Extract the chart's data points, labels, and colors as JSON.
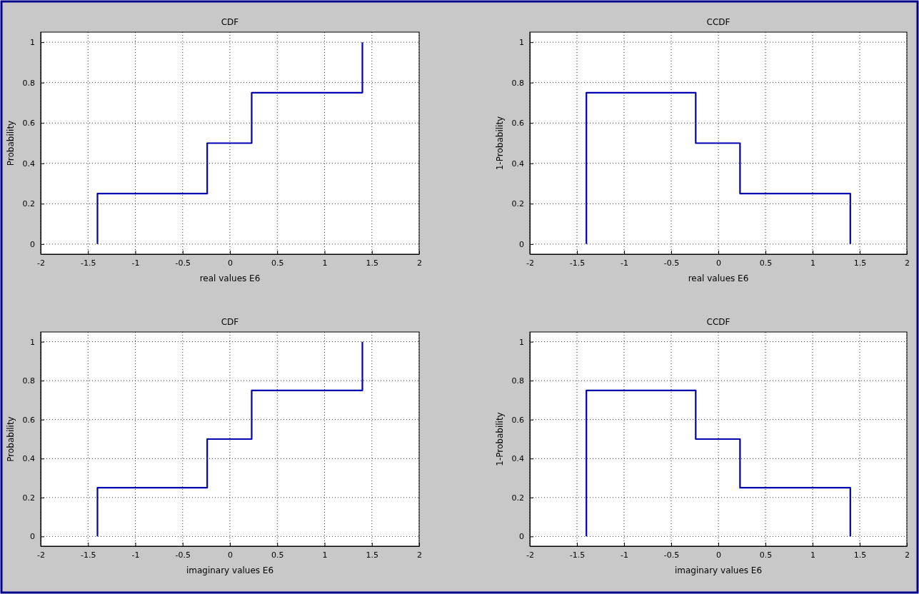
{
  "chart_data": [
    {
      "type": "step",
      "title": "CDF",
      "xlabel": "real values E6",
      "ylabel": "Probability",
      "xlim": [
        -2,
        2
      ],
      "ylim": [
        -0.05,
        1.05
      ],
      "xticks": [
        -2,
        -1.5,
        -1,
        -0.5,
        0,
        0.5,
        1,
        1.5,
        2
      ],
      "yticks": [
        0,
        0.2,
        0.4,
        0.6,
        0.8,
        1
      ],
      "grid": true,
      "line_style": "solid",
      "series": [
        {
          "color": "#0000b0",
          "x": [
            -1.4,
            -1.4,
            -0.24,
            0.23,
            1.4
          ],
          "values": [
            0,
            0.25,
            0.5,
            0.75,
            1
          ]
        }
      ]
    },
    {
      "type": "step",
      "title": "CCDF",
      "xlabel": "real values E6",
      "ylabel": "1-Probability",
      "xlim": [
        -2,
        2
      ],
      "ylim": [
        -0.05,
        1.05
      ],
      "xticks": [
        -2,
        -1.5,
        -1,
        -0.5,
        0,
        0.5,
        1,
        1.5,
        2
      ],
      "yticks": [
        0,
        0.2,
        0.4,
        0.6,
        0.8,
        1
      ],
      "grid": true,
      "line_style": "solid",
      "series": [
        {
          "color": "#0000b0",
          "x": [
            -1.4,
            -1.4,
            -0.24,
            0.23,
            1.4
          ],
          "values": [
            0,
            0.75,
            0.5,
            0.25,
            0
          ]
        }
      ]
    },
    {
      "type": "step",
      "title": "CDF",
      "xlabel": "imaginary values E6",
      "ylabel": "Probability",
      "xlim": [
        -2,
        2
      ],
      "ylim": [
        -0.05,
        1.05
      ],
      "xticks": [
        -2,
        -1.5,
        -1,
        -0.5,
        0,
        0.5,
        1,
        1.5,
        2
      ],
      "yticks": [
        0,
        0.2,
        0.4,
        0.6,
        0.8,
        1
      ],
      "grid": true,
      "line_style": "solid",
      "series": [
        {
          "color": "#0000b0",
          "x": [
            -1.4,
            -1.4,
            -0.24,
            0.23,
            1.4
          ],
          "values": [
            0,
            0.25,
            0.5,
            0.75,
            1
          ]
        }
      ]
    },
    {
      "type": "step",
      "title": "CCDF",
      "xlabel": "imaginary values E6",
      "ylabel": "1-Probability",
      "xlim": [
        -2,
        2
      ],
      "ylim": [
        -0.05,
        1.05
      ],
      "xticks": [
        -2,
        -1.5,
        -1,
        -0.5,
        0,
        0.5,
        1,
        1.5,
        2
      ],
      "yticks": [
        0,
        0.2,
        0.4,
        0.6,
        0.8,
        1
      ],
      "grid": true,
      "line_style": "solid",
      "series": [
        {
          "color": "#0000b0",
          "x": [
            -1.4,
            -1.4,
            -0.24,
            0.23,
            1.4
          ],
          "values": [
            0,
            0.75,
            0.5,
            0.25,
            0
          ]
        }
      ]
    }
  ]
}
